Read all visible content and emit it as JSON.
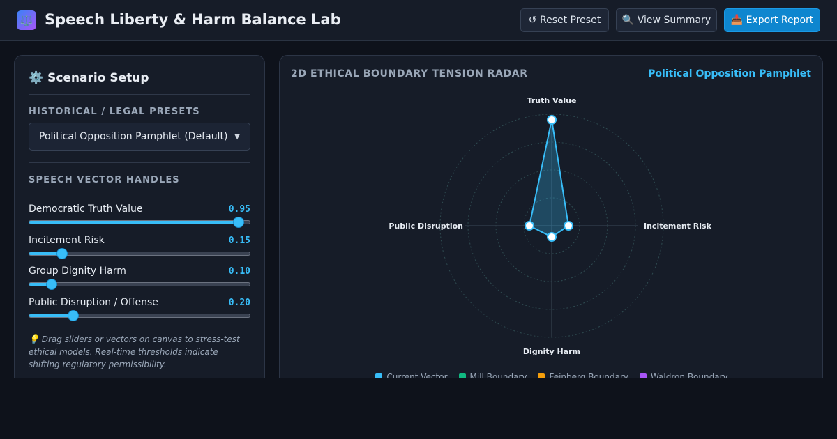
{
  "header": {
    "logo_icon": "scales-icon",
    "title": "Speech Liberty & Harm Balance Lab",
    "buttons": {
      "reset": "↺ Reset Preset",
      "summary": "🔍 View Summary",
      "export": "📥 Export Report"
    }
  },
  "setup": {
    "title": "⚙️ Scenario Setup",
    "presets_label": "HISTORICAL / LEGAL PRESETS",
    "preset_selected": "Political Opposition Pamphlet (Default)",
    "vectors_label": "SPEECH VECTOR HANDLES",
    "sliders": [
      {
        "label": "Democratic Truth Value",
        "value": 0.95,
        "value_text": "0.95"
      },
      {
        "label": "Incitement Risk",
        "value": 0.15,
        "value_text": "0.15"
      },
      {
        "label": "Group Dignity Harm",
        "value": 0.1,
        "value_text": "0.10"
      },
      {
        "label": "Public Disruption / Offense",
        "value": 0.2,
        "value_text": "0.20"
      }
    ],
    "hint": "💡 Drag sliders or vectors on canvas to stress-test ethical models. Real-time thresholds indicate shifting regulatory permissibility."
  },
  "radar": {
    "title": "2D ETHICAL BOUNDARY TENSION RADAR",
    "active_preset": "Political Opposition Pamphlet",
    "axes": {
      "top": "Truth Value",
      "right": "Incitement Risk",
      "bottom": "Dignity Harm",
      "left": "Public Disruption"
    },
    "vector": {
      "truth": 0.95,
      "incitement": 0.15,
      "dignity": 0.1,
      "disruption": 0.2
    },
    "legend": [
      {
        "label": "Current Vector",
        "color": "#38bdf8"
      },
      {
        "label": "Mill Boundary",
        "color": "#10b981"
      },
      {
        "label": "Feinberg Boundary",
        "color": "#f59e0b"
      },
      {
        "label": "Waldron Boundary",
        "color": "#a855f7"
      }
    ]
  },
  "colors": {
    "accent": "#38bdf8",
    "primary_button": "#0e86cf"
  }
}
